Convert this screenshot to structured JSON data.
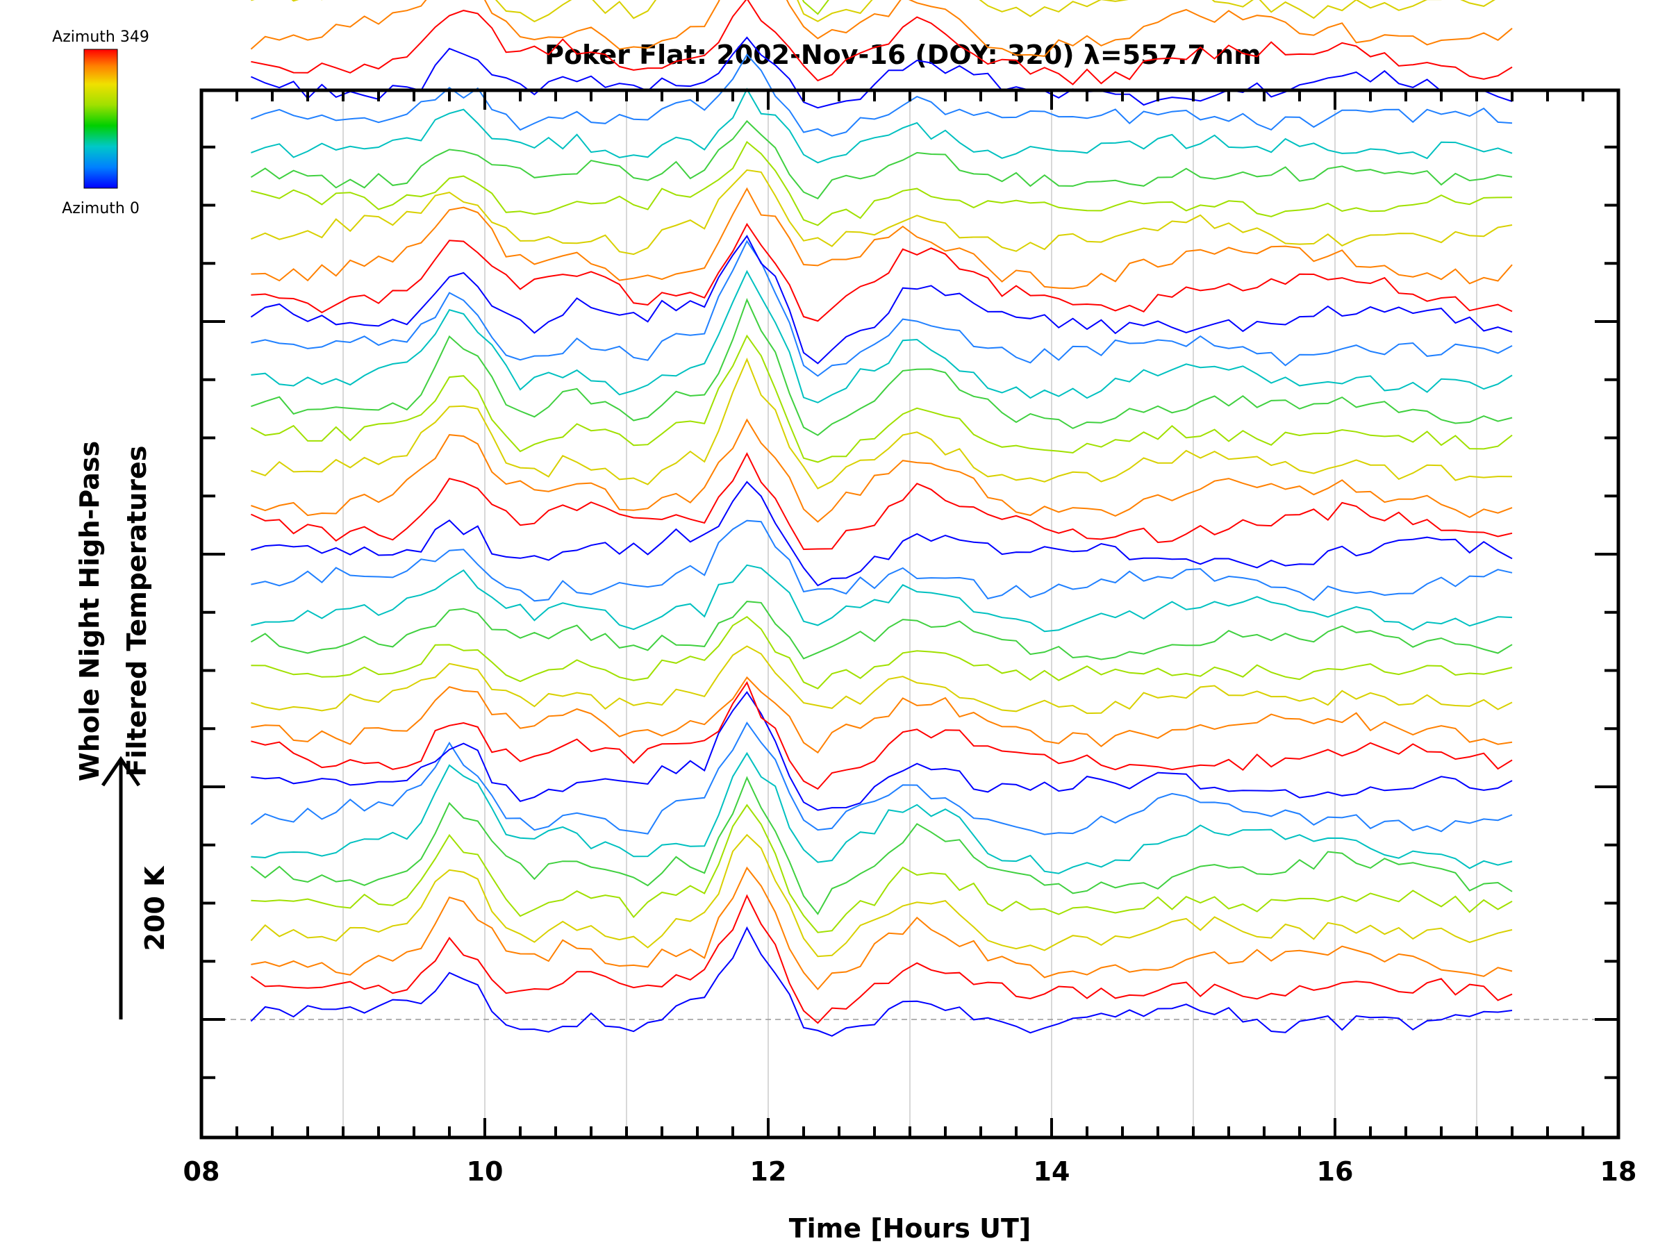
{
  "chart_data": {
    "type": "line",
    "title": "Poker Flat: 2002-Nov-16 (DOY: 320) λ=557.7 nm",
    "xlabel": "Time [Hours UT]",
    "ylabel_line1": "Whole Night High-Pass",
    "ylabel_line2": "Filtered Temperatures",
    "scale_bar_label": "200 K",
    "scale_bar_value": 200,
    "xlim": [
      8,
      18
    ],
    "x_ticks": [
      8,
      10,
      12,
      14,
      16,
      18
    ],
    "x_tick_labels": [
      "08",
      "10",
      "12",
      "14",
      "16",
      "18"
    ],
    "x_minor_step": 0.25,
    "y_tick_step_K": 50,
    "colorbar": {
      "top_label": "Azimuth 349",
      "bottom_label": "Azimuth 0",
      "colors": [
        "#0000ff",
        "#0080ff",
        "#00c0c0",
        "#00d000",
        "#a0e000",
        "#f0e000",
        "#ff8000",
        "#ff0000"
      ]
    },
    "grid": true,
    "n_traces": 64,
    "trace_offset_K": 25,
    "trace_start_hour": 8.35,
    "trace_end_hour": 17.25,
    "trace_sample_step_hour": 0.1,
    "colour_cycle": [
      "#0000ff",
      "#ff0000",
      "#ff8000",
      "#d8d000",
      "#a0e000",
      "#40d040",
      "#00c0c0",
      "#2080ff"
    ],
    "common_signal_K": [
      {
        "x": 8.35,
        "y": 0
      },
      {
        "x": 8.5,
        "y": 3
      },
      {
        "x": 8.8,
        "y": -3
      },
      {
        "x": 9.3,
        "y": 3
      },
      {
        "x": 9.5,
        "y": 8
      },
      {
        "x": 9.75,
        "y": 50
      },
      {
        "x": 9.95,
        "y": 38
      },
      {
        "x": 10.1,
        "y": 10
      },
      {
        "x": 10.3,
        "y": -6
      },
      {
        "x": 10.6,
        "y": 10
      },
      {
        "x": 10.8,
        "y": 4
      },
      {
        "x": 11.1,
        "y": -10
      },
      {
        "x": 11.3,
        "y": 8
      },
      {
        "x": 11.55,
        "y": 10
      },
      {
        "x": 11.85,
        "y": 78
      },
      {
        "x": 12.05,
        "y": 40
      },
      {
        "x": 12.3,
        "y": -25
      },
      {
        "x": 12.5,
        "y": -10
      },
      {
        "x": 12.8,
        "y": 10
      },
      {
        "x": 13.0,
        "y": 30
      },
      {
        "x": 13.3,
        "y": 18
      },
      {
        "x": 13.6,
        "y": -2
      },
      {
        "x": 13.9,
        "y": -8
      },
      {
        "x": 14.3,
        "y": -8
      },
      {
        "x": 14.7,
        "y": 0
      },
      {
        "x": 15.0,
        "y": 6
      },
      {
        "x": 15.4,
        "y": 3
      },
      {
        "x": 15.8,
        "y": 0
      },
      {
        "x": 16.0,
        "y": 6
      },
      {
        "x": 16.4,
        "y": 0
      },
      {
        "x": 16.8,
        "y": -2
      },
      {
        "x": 17.0,
        "y": -6
      },
      {
        "x": 17.25,
        "y": -4
      }
    ]
  }
}
